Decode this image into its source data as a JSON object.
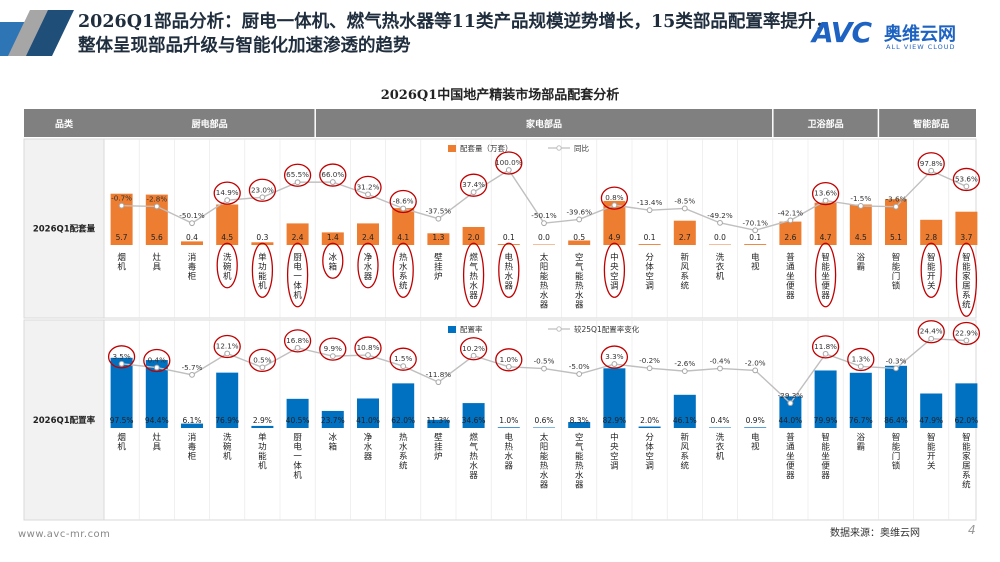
{
  "header": {
    "title": "2026Q1部品分析：厨电一体机、燃气热水器等11类产品规模逆势增长，15类部品配置率提升，整体呈现部品升级与智能化加速渗透的趋势",
    "logo_mark": "AVC",
    "logo_cn": "奥维云网",
    "logo_en": "ALL VIEW CLOUD"
  },
  "footer": {
    "url": "www.avc-mr.com",
    "source": "数据来源：奥维云网",
    "page": "4"
  },
  "colors": {
    "orange": "#ED7D31",
    "blue": "#0070C0",
    "header_bg": "#808080",
    "line": "#BFBFBF",
    "circle": "#C00000"
  },
  "chart_data": {
    "type": "bar",
    "title": "2026Q1中国地产精装市场部品配套分析",
    "column_header": "品类",
    "groups": [
      {
        "name": "厨电部品",
        "count": 6
      },
      {
        "name": "家电部品",
        "count": 13
      },
      {
        "name": "卫浴部品",
        "count": 3
      },
      {
        "name": "智能部品",
        "count": 3
      }
    ],
    "categories": [
      "烟机",
      "灶具",
      "消毒柜",
      "洗碗机",
      "单功能机",
      "厨电一体机",
      "冰箱",
      "净水器",
      "热水系统",
      "壁挂炉",
      "燃气热水器",
      "电热水器",
      "太阳能热水器",
      "空气能热水器",
      "中央空调",
      "分体空调",
      "新风系统",
      "洗衣机",
      "电视",
      "普通坐便器",
      "智能坐便器",
      "浴霸",
      "智能门锁",
      "智能开关",
      "智能家居系统"
    ],
    "panels": [
      {
        "row_label": "2026Q1配套量",
        "legend_bar": "配套量（万套）",
        "legend_line": "同比",
        "bar_values": [
          "5.7",
          "5.6",
          "0.4",
          "4.5",
          "0.3",
          "2.4",
          "1.4",
          "2.4",
          "4.1",
          "1.3",
          "2.0",
          "0.1",
          "0.0",
          "0.5",
          "4.9",
          "0.1",
          "2.7",
          "0.0",
          "0.1",
          "2.6",
          "4.7",
          "4.5",
          "5.1",
          "2.8",
          "3.7"
        ],
        "bar_max": 7,
        "line_values": [
          "-0.7%",
          "-2.8%",
          "-50.1%",
          "14.9%",
          "23.0%",
          "65.5%",
          "66.0%",
          "31.2%",
          "-8.6%",
          "-37.5%",
          "37.4%",
          "100.0%",
          "-50.1%",
          "-39.6%",
          "0.8%",
          "-13.4%",
          "-8.5%",
          "-49.2%",
          "-70.1%",
          "-42.1%",
          "13.6%",
          "-1.5%",
          "-3.6%",
          "97.8%",
          "53.6%"
        ],
        "line_range": [
          -75,
          100
        ],
        "circled": [
          "洗碗机",
          "单功能机",
          "厨电一体机",
          "冰箱",
          "净水器",
          "热水系统",
          "燃气热水器",
          "电热水器",
          "中央空调",
          "智能坐便器",
          "智能开关",
          "智能家居系统"
        ]
      },
      {
        "row_label": "2026Q1配置率",
        "legend_bar": "配置率",
        "legend_line": "较25Q1配置率变化",
        "bar_values": [
          "97.5%",
          "94.4%",
          "6.1%",
          "76.9%",
          "2.9%",
          "40.5%",
          "23.7%",
          "41.0%",
          "62.0%",
          "11.3%",
          "34.6%",
          "1.0%",
          "0.6%",
          "8.3%",
          "82.9%",
          "2.0%",
          "46.1%",
          "0.4%",
          "0.9%",
          "44.0%",
          "79.9%",
          "76.7%",
          "86.4%",
          "47.9%",
          "62.0%"
        ],
        "bar_max": 100,
        "line_values": [
          "3.5%",
          "0.4%",
          "-5.7%",
          "12.1%",
          "0.5%",
          "16.8%",
          "9.9%",
          "10.8%",
          "1.5%",
          "-11.8%",
          "10.2%",
          "1.0%",
          "-0.5%",
          "-5.0%",
          "3.3%",
          "-0.2%",
          "-2.6%",
          "-0.4%",
          "-2.0%",
          "-29.3%",
          "11.8%",
          "1.3%",
          "-0.3%",
          "24.4%",
          "22.9%"
        ],
        "line_range": [
          -30,
          25
        ],
        "circled": [
          "烟机",
          "灶具",
          "洗碗机",
          "单功能机",
          "厨电一体机",
          "冰箱",
          "净水器",
          "热水系统",
          "燃气热水器",
          "电热水器",
          "中央空调",
          "智能坐便器",
          "浴霸",
          "智能开关",
          "智能家居系统"
        ]
      }
    ]
  }
}
